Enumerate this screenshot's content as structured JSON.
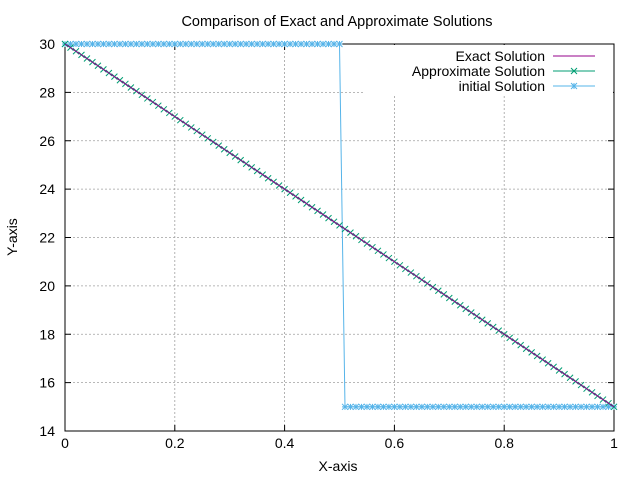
{
  "chart_data": {
    "type": "line",
    "title": "Comparison of Exact and Approximate Solutions",
    "xlabel": "X-axis",
    "ylabel": "Y-axis",
    "xlim": [
      0,
      1
    ],
    "ylim": [
      14,
      30
    ],
    "xticks": [
      "0",
      "0.2",
      "0.4",
      "0.6",
      "0.8",
      "1"
    ],
    "yticks": [
      "14",
      "16",
      "18",
      "20",
      "22",
      "24",
      "26",
      "28",
      "30"
    ],
    "grid": true,
    "legend_position": "top-right",
    "series": [
      {
        "name": "Exact Solution",
        "color": "#94008b",
        "marker": "none",
        "x": [
          0,
          1
        ],
        "y": [
          30,
          15
        ]
      },
      {
        "name": "Approximate Solution",
        "color": "#009e73",
        "marker": "x",
        "x_start": 0,
        "x_end": 1,
        "count": 101,
        "y_start": 30,
        "y_end": 15
      },
      {
        "name": "initial Solution",
        "color": "#56b4e9",
        "marker": "star",
        "x_start": 0,
        "x_end": 1,
        "count": 101,
        "step_at": 0.505,
        "y_left": 30,
        "y_right": 15
      }
    ]
  }
}
